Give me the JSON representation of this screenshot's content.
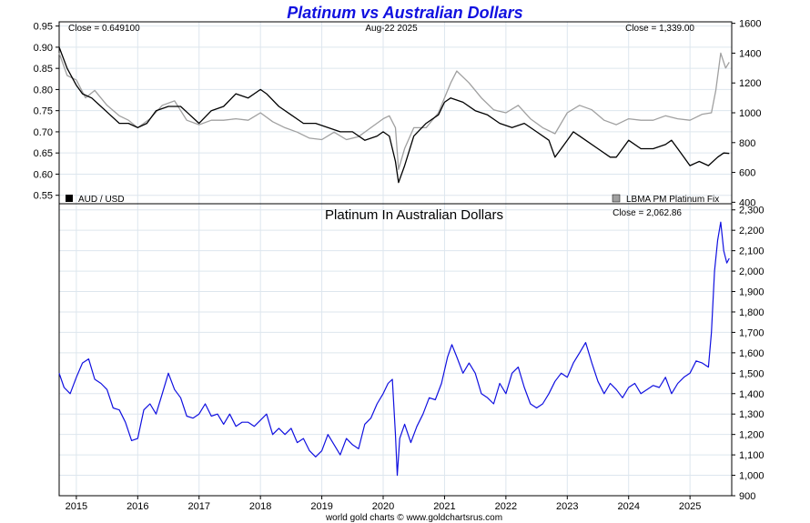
{
  "chart_data": [
    {
      "type": "line",
      "title": "Platinum vs Australian Dollars",
      "date_label": "Aug-22  2025",
      "left_close": "Close = 0.649100",
      "right_close": "Close = 1,339.00",
      "x_ticks": [
        "2015",
        "2016",
        "2017",
        "2018",
        "2019",
        "2020",
        "2021",
        "2022",
        "2023",
        "2024",
        "2025"
      ],
      "x_range": [
        2014.72,
        2025.68
      ],
      "y_left_range": [
        0.53,
        0.96
      ],
      "y_left_ticks": [
        "0.55",
        "0.60",
        "0.65",
        "0.70",
        "0.75",
        "0.80",
        "0.85",
        "0.90",
        "0.95"
      ],
      "y_right_range": [
        390,
        1610
      ],
      "y_right_ticks": [
        "400",
        "600",
        "800",
        "1000",
        "1200",
        "1400",
        "1600"
      ],
      "legend_left": "AUD / USD",
      "legend_right": "LBMA PM Platinum Fix",
      "legend_left_color": "#000000",
      "legend_right_color": "#a0a0a0",
      "grid": true,
      "series": [
        {
          "name": "AUD / USD",
          "axis": "left",
          "color": "#000000",
          "x": [
            2014.72,
            2014.85,
            2015.0,
            2015.1,
            2015.25,
            2015.4,
            2015.55,
            2015.7,
            2015.85,
            2016.0,
            2016.15,
            2016.3,
            2016.5,
            2016.7,
            2016.85,
            2017.0,
            2017.2,
            2017.4,
            2017.6,
            2017.8,
            2018.0,
            2018.1,
            2018.3,
            2018.5,
            2018.7,
            2018.9,
            2019.1,
            2019.3,
            2019.5,
            2019.7,
            2019.9,
            2020.0,
            2020.1,
            2020.2,
            2020.25,
            2020.35,
            2020.5,
            2020.7,
            2020.9,
            2021.0,
            2021.1,
            2021.3,
            2021.5,
            2021.7,
            2021.9,
            2022.1,
            2022.3,
            2022.5,
            2022.7,
            2022.8,
            2022.9,
            2023.0,
            2023.1,
            2023.3,
            2023.5,
            2023.7,
            2023.8,
            2023.9,
            2024.0,
            2024.2,
            2024.4,
            2024.6,
            2024.7,
            2024.8,
            2024.9,
            2025.0,
            2025.15,
            2025.3,
            2025.45,
            2025.55,
            2025.64
          ],
          "values": [
            0.9,
            0.85,
            0.81,
            0.79,
            0.78,
            0.76,
            0.74,
            0.72,
            0.72,
            0.71,
            0.72,
            0.75,
            0.76,
            0.76,
            0.74,
            0.72,
            0.75,
            0.76,
            0.79,
            0.78,
            0.8,
            0.79,
            0.76,
            0.74,
            0.72,
            0.72,
            0.71,
            0.7,
            0.7,
            0.68,
            0.69,
            0.7,
            0.69,
            0.63,
            0.58,
            0.62,
            0.69,
            0.72,
            0.74,
            0.77,
            0.78,
            0.77,
            0.75,
            0.74,
            0.72,
            0.71,
            0.72,
            0.7,
            0.68,
            0.64,
            0.66,
            0.68,
            0.7,
            0.68,
            0.66,
            0.64,
            0.64,
            0.66,
            0.68,
            0.66,
            0.66,
            0.67,
            0.68,
            0.66,
            0.64,
            0.62,
            0.63,
            0.62,
            0.64,
            0.65,
            0.649
          ]
        },
        {
          "name": "LBMA PM Platinum Fix",
          "axis": "right",
          "color": "#a0a0a0",
          "x": [
            2014.72,
            2014.85,
            2015.0,
            2015.15,
            2015.3,
            2015.5,
            2015.7,
            2015.85,
            2016.0,
            2016.2,
            2016.4,
            2016.6,
            2016.8,
            2017.0,
            2017.2,
            2017.4,
            2017.6,
            2017.8,
            2018.0,
            2018.2,
            2018.4,
            2018.6,
            2018.8,
            2019.0,
            2019.2,
            2019.4,
            2019.6,
            2019.8,
            2020.0,
            2020.1,
            2020.2,
            2020.25,
            2020.35,
            2020.5,
            2020.7,
            2020.9,
            2021.0,
            2021.1,
            2021.2,
            2021.4,
            2021.6,
            2021.8,
            2022.0,
            2022.2,
            2022.4,
            2022.6,
            2022.8,
            2023.0,
            2023.2,
            2023.4,
            2023.6,
            2023.8,
            2024.0,
            2024.2,
            2024.4,
            2024.6,
            2024.8,
            2025.0,
            2025.2,
            2025.35,
            2025.42,
            2025.5,
            2025.58,
            2025.64
          ],
          "values": [
            1400,
            1250,
            1220,
            1100,
            1150,
            1050,
            980,
            950,
            900,
            960,
            1050,
            1080,
            950,
            920,
            950,
            950,
            960,
            950,
            1000,
            940,
            900,
            870,
            830,
            820,
            870,
            820,
            840,
            900,
            960,
            980,
            900,
            620,
            760,
            900,
            900,
            1000,
            1100,
            1200,
            1280,
            1200,
            1100,
            1020,
            1000,
            1050,
            960,
            900,
            860,
            1000,
            1050,
            1020,
            950,
            920,
            960,
            950,
            950,
            980,
            960,
            950,
            990,
            1000,
            1150,
            1400,
            1300,
            1339
          ]
        }
      ]
    },
    {
      "type": "line",
      "title": "Platinum In Australian Dollars",
      "close_text": "Close = 2,062.86",
      "x_ticks": [
        "2015",
        "2016",
        "2017",
        "2018",
        "2019",
        "2020",
        "2021",
        "2022",
        "2023",
        "2024",
        "2025"
      ],
      "x_range": [
        2014.72,
        2025.68
      ],
      "y_range": [
        900,
        2330
      ],
      "y_ticks": [
        "900",
        "1,000",
        "1,100",
        "1,200",
        "1,300",
        "1,400",
        "1,500",
        "1,600",
        "1,700",
        "1,800",
        "1,900",
        "2,000",
        "2,100",
        "2,200",
        "2,300"
      ],
      "grid": true,
      "series": [
        {
          "color": "#1010e0",
          "x": [
            2014.72,
            2014.8,
            2014.9,
            2015.0,
            2015.1,
            2015.2,
            2015.3,
            2015.4,
            2015.5,
            2015.6,
            2015.7,
            2015.8,
            2015.9,
            2016.0,
            2016.1,
            2016.2,
            2016.3,
            2016.4,
            2016.5,
            2016.6,
            2016.7,
            2016.8,
            2016.9,
            2017.0,
            2017.1,
            2017.2,
            2017.3,
            2017.4,
            2017.5,
            2017.6,
            2017.7,
            2017.8,
            2017.9,
            2018.0,
            2018.1,
            2018.2,
            2018.3,
            2018.4,
            2018.5,
            2018.6,
            2018.7,
            2018.8,
            2018.9,
            2019.0,
            2019.1,
            2019.2,
            2019.3,
            2019.4,
            2019.5,
            2019.6,
            2019.7,
            2019.8,
            2019.9,
            2020.0,
            2020.08,
            2020.15,
            2020.2,
            2020.23,
            2020.27,
            2020.35,
            2020.45,
            2020.55,
            2020.65,
            2020.75,
            2020.85,
            2020.95,
            2021.05,
            2021.12,
            2021.2,
            2021.3,
            2021.4,
            2021.5,
            2021.6,
            2021.7,
            2021.8,
            2021.9,
            2022.0,
            2022.1,
            2022.2,
            2022.3,
            2022.4,
            2022.5,
            2022.6,
            2022.7,
            2022.8,
            2022.9,
            2023.0,
            2023.1,
            2023.2,
            2023.3,
            2023.4,
            2023.5,
            2023.6,
            2023.7,
            2023.8,
            2023.9,
            2024.0,
            2024.1,
            2024.2,
            2024.3,
            2024.4,
            2024.5,
            2024.6,
            2024.7,
            2024.8,
            2024.9,
            2025.0,
            2025.1,
            2025.2,
            2025.3,
            2025.35,
            2025.4,
            2025.45,
            2025.5,
            2025.55,
            2025.6,
            2025.64
          ],
          "values": [
            1500,
            1430,
            1400,
            1480,
            1550,
            1570,
            1470,
            1450,
            1420,
            1330,
            1320,
            1260,
            1170,
            1180,
            1320,
            1350,
            1300,
            1400,
            1500,
            1420,
            1380,
            1290,
            1280,
            1300,
            1350,
            1290,
            1300,
            1250,
            1300,
            1240,
            1260,
            1260,
            1240,
            1270,
            1300,
            1200,
            1230,
            1200,
            1230,
            1160,
            1180,
            1120,
            1090,
            1120,
            1200,
            1150,
            1100,
            1180,
            1150,
            1130,
            1250,
            1280,
            1350,
            1400,
            1450,
            1470,
            1200,
            1000,
            1180,
            1250,
            1160,
            1240,
            1300,
            1380,
            1370,
            1450,
            1580,
            1640,
            1580,
            1500,
            1550,
            1500,
            1400,
            1380,
            1350,
            1450,
            1400,
            1500,
            1530,
            1430,
            1350,
            1330,
            1350,
            1400,
            1460,
            1500,
            1480,
            1550,
            1600,
            1650,
            1550,
            1460,
            1400,
            1450,
            1420,
            1380,
            1430,
            1450,
            1400,
            1420,
            1440,
            1430,
            1480,
            1400,
            1450,
            1480,
            1500,
            1560,
            1550,
            1530,
            1700,
            2000,
            2150,
            2240,
            2100,
            2040,
            2062.86
          ]
        }
      ]
    }
  ],
  "footer": "world gold charts © www.goldchartsrus.com"
}
